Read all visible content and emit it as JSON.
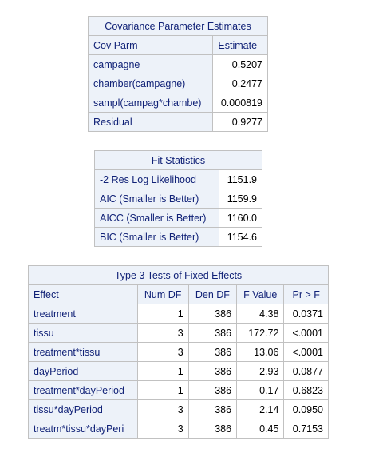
{
  "cov": {
    "title": "Covariance Parameter Estimates",
    "headers": [
      "Cov Parm",
      "Estimate"
    ],
    "rows": [
      [
        "campagne",
        "0.5207"
      ],
      [
        "chamber(campagne)",
        "0.2477"
      ],
      [
        "sampl(campag*chambe)",
        "0.000819"
      ],
      [
        "Residual",
        "0.9277"
      ]
    ]
  },
  "fit": {
    "title": "Fit Statistics",
    "rows": [
      [
        "-2 Res Log Likelihood",
        "1151.9"
      ],
      [
        "AIC (Smaller is Better)",
        "1159.9"
      ],
      [
        "AICC (Smaller is Better)",
        "1160.0"
      ],
      [
        "BIC (Smaller is Better)",
        "1154.6"
      ]
    ]
  },
  "type3": {
    "title": "Type 3 Tests of Fixed Effects",
    "headers": [
      "Effect",
      "Num DF",
      "Den DF",
      "F Value",
      "Pr > F"
    ],
    "rows": [
      [
        "treatment",
        "1",
        "386",
        "4.38",
        "0.0371"
      ],
      [
        "tissu",
        "3",
        "386",
        "172.72",
        "<.0001"
      ],
      [
        "treatment*tissu",
        "3",
        "386",
        "13.06",
        "<.0001"
      ],
      [
        "dayPeriod",
        "1",
        "386",
        "2.93",
        "0.0877"
      ],
      [
        "treatment*dayPeriod",
        "1",
        "386",
        "0.17",
        "0.6823"
      ],
      [
        "tissu*dayPeriod",
        "3",
        "386",
        "2.14",
        "0.0950"
      ],
      [
        "treatm*tissu*dayPeri",
        "3",
        "386",
        "0.45",
        "0.7153"
      ]
    ]
  }
}
